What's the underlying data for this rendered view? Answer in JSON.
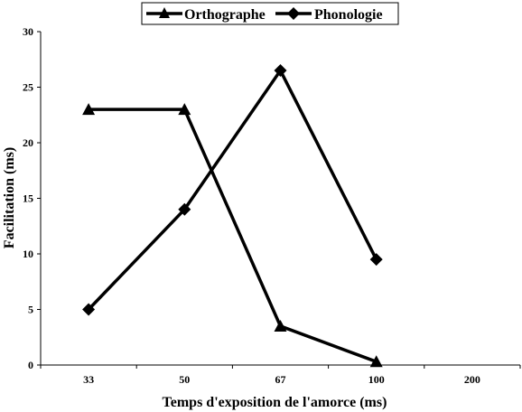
{
  "chart_data": {
    "type": "line",
    "categories": [
      "33",
      "50",
      "67",
      "100",
      "200"
    ],
    "xlabel": "Temps d'exposition de l'amorce (ms)",
    "ylabel": "Facilitation (ms)",
    "ylim": [
      0,
      30
    ],
    "yticks": [
      "0",
      "5",
      "10",
      "15",
      "20",
      "25",
      "30"
    ],
    "grid": false,
    "legend_position": "top",
    "series": [
      {
        "name": "Orthographe",
        "marker": "triangle",
        "color": "#000000",
        "values": [
          23,
          23,
          3.5,
          0.3,
          null
        ]
      },
      {
        "name": "Phonologie",
        "marker": "diamond",
        "color": "#000000",
        "values": [
          5,
          14,
          26.5,
          9.5,
          null
        ]
      }
    ]
  }
}
